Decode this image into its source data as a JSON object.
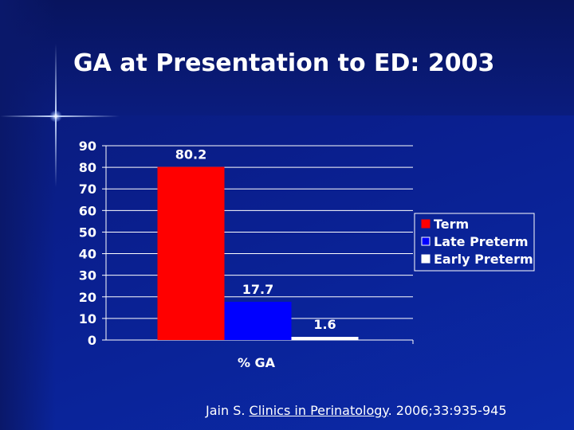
{
  "slide": {
    "title": "GA at Presentation to ED: 2003",
    "citation": {
      "author": "Jain S.",
      "journal": "Clinics in Perinatology",
      "details": ". 2006;33:935-945"
    }
  },
  "chart_data": {
    "type": "bar",
    "title": "GA at Presentation to ED: 2003",
    "categories": [
      "% GA"
    ],
    "series": [
      {
        "name": "Term",
        "values": [
          80.2
        ],
        "color": "#ff0000"
      },
      {
        "name": "Late Preterm",
        "values": [
          17.7
        ],
        "color": "#0000ff"
      },
      {
        "name": "Early Preterm",
        "values": [
          1.6
        ],
        "color": "#ffffff"
      }
    ],
    "data_labels": [
      "80.2",
      "17.7",
      "1.6"
    ],
    "xlabel": "% GA",
    "ylabel": "",
    "ylim": [
      0,
      90
    ],
    "yticks": [
      0,
      10,
      20,
      30,
      40,
      50,
      60,
      70,
      80,
      90
    ],
    "grid": true,
    "legend_position": "right"
  }
}
